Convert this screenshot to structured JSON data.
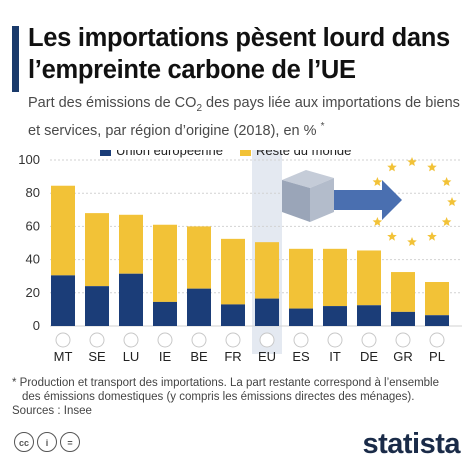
{
  "header": {
    "title": "Les importations pèsent lourd dans l’empreinte carbone de l’UE",
    "subtitle_a": "Part des émissions de CO",
    "subtitle_sub": "2",
    "subtitle_b": " des pays liée aux importations de biens et services, par région d’origine (2018), en %",
    "subtitle_mark": "*"
  },
  "footer": {
    "footnote_a": "* Production et transport des importations. La part restante correspond à l’ensemble",
    "footnote_b": "des émissions domestiques (y compris les émissions directes des ménages).",
    "source": "Sources : Insee",
    "licence_icons": [
      "cc-icon",
      "by-icon",
      "equals-icon"
    ],
    "logo": "statista"
  },
  "colors": {
    "eu": "#1b3d78",
    "rest": "#f2c237",
    "highlight": "#e4e9f1",
    "grid": "#d2d2d2",
    "arrow": "#4a6fb0"
  },
  "chart_data": {
    "type": "bar",
    "stacked": true,
    "categories": [
      "MT",
      "SE",
      "LU",
      "IE",
      "BE",
      "FR",
      "EU",
      "ES",
      "IT",
      "DE",
      "GR",
      "PL"
    ],
    "series": [
      {
        "name": "Union européenne",
        "values": [
          30.5,
          24,
          31.5,
          14.5,
          22.5,
          13,
          16.5,
          10.5,
          12,
          12.5,
          8.5,
          6.5
        ]
      },
      {
        "name": "Reste du monde",
        "values": [
          54,
          44,
          35.5,
          46.5,
          37.5,
          39.5,
          34,
          36,
          34.5,
          33,
          24,
          20
        ]
      }
    ],
    "totals": [
      84.5,
      68,
      67,
      61,
      60,
      52.5,
      50.5,
      46.5,
      46.5,
      45.5,
      32.5,
      26.5
    ],
    "highlight_category": "EU",
    "ylim": [
      0,
      100
    ],
    "yticks": [
      0,
      20,
      40,
      60,
      80,
      100
    ],
    "grid": true,
    "legend_position": "top"
  }
}
